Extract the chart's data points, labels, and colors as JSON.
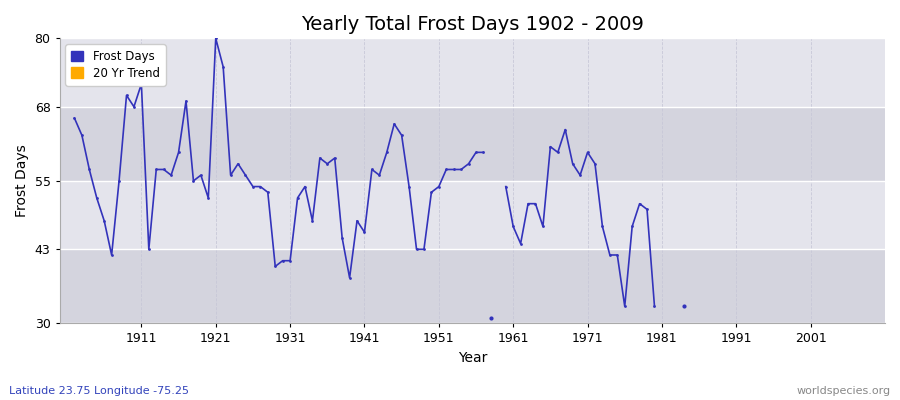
{
  "title": "Yearly Total Frost Days 1902 - 2009",
  "xlabel": "Year",
  "ylabel": "Frost Days",
  "xlim": [
    1900,
    2011
  ],
  "ylim": [
    30,
    80
  ],
  "yticks": [
    30,
    43,
    55,
    68,
    80
  ],
  "xticks": [
    1911,
    1921,
    1931,
    1941,
    1951,
    1961,
    1971,
    1981,
    1991,
    2001
  ],
  "line_color": "#3333bb",
  "bg_color": "#e8e8ee",
  "band_colors": [
    "#d8d8e2",
    "#e4e4ec"
  ],
  "grid_h_color": "#ffffff",
  "grid_v_color": "#c8c8d8",
  "title_fontsize": 14,
  "label_fontsize": 10,
  "tick_fontsize": 9,
  "bottom_left_text": "Latitude 23.75 Longitude -75.25",
  "bottom_right_text": "worldspecies.org",
  "legend_entries": [
    "Frost Days",
    "20 Yr Trend"
  ],
  "legend_colors": [
    "#3333bb",
    "#ffaa00"
  ],
  "segments": [
    {
      "years": [
        1902,
        1903,
        1904,
        1905,
        1906,
        1907,
        1908,
        1909,
        1910,
        1911,
        1912,
        1913,
        1914,
        1915,
        1916,
        1917,
        1918,
        1919,
        1920,
        1921,
        1922,
        1923,
        1924,
        1925,
        1926,
        1927,
        1928,
        1929,
        1930,
        1931,
        1932,
        1933,
        1934,
        1935,
        1936,
        1937,
        1938,
        1939,
        1940,
        1941,
        1942,
        1943,
        1944,
        1945,
        1946,
        1947,
        1948,
        1949,
        1950,
        1951,
        1952,
        1953,
        1954,
        1955,
        1956,
        1957
      ],
      "values": [
        66,
        63,
        57,
        52,
        48,
        42,
        55,
        70,
        68,
        72,
        43,
        57,
        57,
        56,
        60,
        69,
        55,
        56,
        52,
        80,
        75,
        56,
        58,
        56,
        54,
        54,
        53,
        40,
        41,
        41,
        52,
        54,
        48,
        59,
        58,
        59,
        45,
        38,
        48,
        46,
        57,
        56,
        60,
        65,
        63,
        54,
        43,
        43,
        53,
        54,
        57,
        57,
        57,
        58,
        60,
        60
      ]
    },
    {
      "years": [
        1960,
        1961,
        1962,
        1963,
        1964,
        1965,
        1966,
        1967,
        1968,
        1969,
        1970,
        1971,
        1972,
        1973,
        1974,
        1975,
        1976,
        1977,
        1978,
        1979,
        1980
      ],
      "values": [
        54,
        47,
        44,
        51,
        51,
        47,
        61,
        60,
        64,
        58,
        56,
        60,
        58,
        47,
        42,
        42,
        33,
        47,
        51,
        50,
        33
      ]
    }
  ],
  "dots": {
    "years": [
      1958,
      1984
    ],
    "values": [
      31,
      33
    ]
  }
}
